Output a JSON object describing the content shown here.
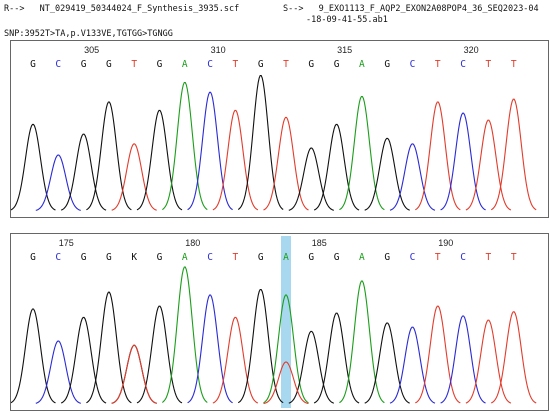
{
  "header": {
    "ref_prefix": "R-->",
    "ref_name": "NT_029419_50344024_F_Synthesis_3935.scf",
    "sample_prefix": "S-->",
    "sample_name_line1": "9_EXO1113_F_AQP2_EXON2A08POP4_36_SEQ2023-04",
    "sample_name_line2": "-18-09-41-55.ab1",
    "snp_line": "SNP:3952T>TA,p.V133VE,TGTGG>TGNGG"
  },
  "colors": {
    "A": "#1a9e1a",
    "C": "#2a2ad6",
    "G": "#111111",
    "T": "#e23c2c",
    "N": "#111111",
    "highlight": "#a8d8f0"
  },
  "reference": {
    "positions": [
      {
        "label": "305",
        "index": 2
      },
      {
        "label": "310",
        "index": 7
      },
      {
        "label": "315",
        "index": 12
      },
      {
        "label": "320",
        "index": 17
      }
    ],
    "bases": [
      "G",
      "C",
      "G",
      "G",
      "T",
      "G",
      "A",
      "C",
      "T",
      "G",
      "T",
      "G",
      "G",
      "A",
      "G",
      "C",
      "T",
      "C",
      "T",
      "T"
    ],
    "heights": [
      0.62,
      0.4,
      0.55,
      0.78,
      0.48,
      0.72,
      0.92,
      0.85,
      0.72,
      0.97,
      0.67,
      0.45,
      0.62,
      0.82,
      0.52,
      0.48,
      0.78,
      0.7,
      0.65,
      0.8
    ]
  },
  "sample": {
    "positions": [
      {
        "label": "175",
        "index": 1
      },
      {
        "label": "180",
        "index": 6
      },
      {
        "label": "185",
        "index": 11
      },
      {
        "label": "190",
        "index": 16
      }
    ],
    "bases": [
      "G",
      "C",
      "G",
      "G",
      "K",
      "G",
      "A",
      "C",
      "T",
      "G",
      "A",
      "G",
      "G",
      "A",
      "G",
      "C",
      "T",
      "C",
      "T",
      "T"
    ],
    "heights": [
      0.68,
      0.45,
      0.62,
      0.8,
      0.42,
      0.7,
      0.98,
      0.78,
      0.62,
      0.82,
      0.78,
      0.52,
      0.65,
      0.88,
      0.58,
      0.55,
      0.7,
      0.63,
      0.6,
      0.66
    ],
    "secondary": [
      {
        "index": 4,
        "base": "T",
        "height": 0.42
      },
      {
        "index": 10,
        "base": "T",
        "height": 0.3
      }
    ],
    "highlight_index": 10
  }
}
